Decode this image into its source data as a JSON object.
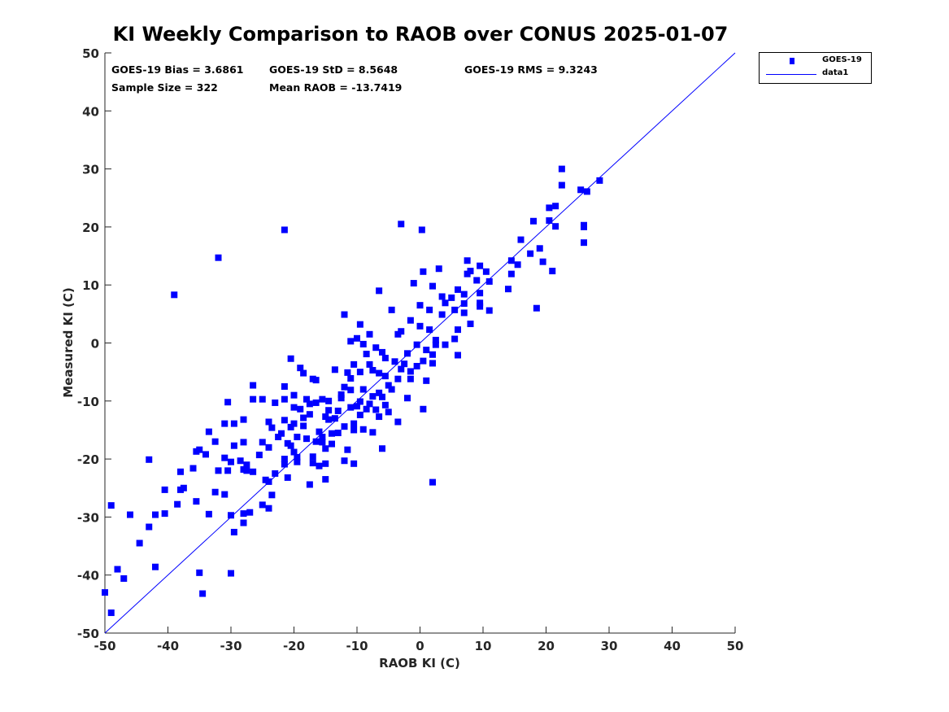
{
  "chart_data": {
    "type": "scatter",
    "title": "KI Weekly Comparison to RAOB over CONUS 2025-01-07",
    "xlabel": "RAOB KI (C)",
    "ylabel": "Measured KI (C)",
    "xlim": [
      -50,
      50
    ],
    "ylim": [
      -50,
      50
    ],
    "xticks": [
      -50,
      -40,
      -30,
      -20,
      -10,
      0,
      10,
      20,
      30,
      40,
      50
    ],
    "yticks": [
      -50,
      -40,
      -30,
      -20,
      -10,
      0,
      10,
      20,
      30,
      40,
      50
    ],
    "grid": false,
    "legend_position": "outside-top-right",
    "legend": [
      "GOES-19",
      "data1"
    ],
    "colors": {
      "points": "#0000ff",
      "line": "#0000ff",
      "axis": "#262626"
    },
    "annotations": {
      "bias": "GOES-19 Bias = 3.6861",
      "std": "GOES-19 StD = 8.5648",
      "rms": "GOES-19 RMS = 9.3243",
      "sample": "Sample Size = 322",
      "mean": "Mean RAOB = -13.7419"
    },
    "series": [
      {
        "name": "GOES-19",
        "kind": "scatter",
        "points": [
          [
            -21.5,
            19.5
          ],
          [
            -32,
            14.7
          ],
          [
            -39,
            8.3
          ],
          [
            -3,
            20.5
          ],
          [
            0.3,
            19.5
          ],
          [
            2,
            -24
          ],
          [
            -49,
            -46.5
          ],
          [
            -50,
            -43
          ],
          [
            -34.5,
            -43.2
          ],
          [
            -35,
            -39.6
          ],
          [
            -30,
            -39.7
          ],
          [
            -48,
            -39
          ],
          [
            -47,
            -40.6
          ],
          [
            -42,
            -38.6
          ],
          [
            -44.5,
            -34.5
          ],
          [
            -43,
            -31.7
          ],
          [
            -46,
            -29.6
          ],
          [
            -49,
            -28
          ],
          [
            -42,
            -29.6
          ],
          [
            -40.5,
            -29.4
          ],
          [
            -40.5,
            -25.3
          ],
          [
            -38,
            -25.3
          ],
          [
            -37.5,
            -25
          ],
          [
            -38.5,
            -27.8
          ],
          [
            -35.5,
            -27.3
          ],
          [
            -33.5,
            -29.5
          ],
          [
            -32.5,
            -25.7
          ],
          [
            -31,
            -26.1
          ],
          [
            -30,
            -29.7
          ],
          [
            -29.5,
            -32.6
          ],
          [
            -28,
            -31
          ],
          [
            -28,
            -29.4
          ],
          [
            -27,
            -29.2
          ],
          [
            -25,
            -27.9
          ],
          [
            -24,
            -28.5
          ],
          [
            -23.5,
            -26.2
          ],
          [
            -43,
            -20.1
          ],
          [
            -38,
            -22.2
          ],
          [
            -36,
            -21.6
          ],
          [
            -35.5,
            -18.7
          ],
          [
            -35,
            -18.4
          ],
          [
            -34,
            -19.2
          ],
          [
            -33.5,
            -15.3
          ],
          [
            -32.5,
            -17
          ],
          [
            -32,
            -22
          ],
          [
            -31,
            -19.8
          ],
          [
            -30.5,
            -22
          ],
          [
            -30,
            -20.5
          ],
          [
            -29.5,
            -17.7
          ],
          [
            -29.5,
            -13.9
          ],
          [
            -30.5,
            -10.2
          ],
          [
            -31,
            -13.9
          ],
          [
            -28.5,
            -20.3
          ],
          [
            -28,
            -21.8
          ],
          [
            -28,
            -17.1
          ],
          [
            -28,
            -13.2
          ],
          [
            -27.5,
            -22
          ],
          [
            -27.5,
            -21
          ],
          [
            -26.5,
            -22.2
          ],
          [
            -26.5,
            -9.7
          ],
          [
            -26.5,
            -7.3
          ],
          [
            -25.5,
            -19.3
          ],
          [
            -25,
            -17.1
          ],
          [
            -25,
            -9.7
          ],
          [
            -24.5,
            -23.6
          ],
          [
            -24,
            -23.9
          ],
          [
            -24,
            -18
          ],
          [
            -24,
            -13.6
          ],
          [
            -23.5,
            -14.6
          ],
          [
            -23,
            -22.5
          ],
          [
            -23,
            -10.3
          ],
          [
            -22.5,
            -16.2
          ],
          [
            -22,
            -15.6
          ],
          [
            -21.5,
            -13.3
          ],
          [
            -21.5,
            -9.7
          ],
          [
            -21.5,
            -7.5
          ],
          [
            -21.5,
            -20
          ],
          [
            -21.5,
            -20.9
          ],
          [
            -21,
            -17.3
          ],
          [
            -21,
            -23.2
          ],
          [
            -20.5,
            -17.7
          ],
          [
            -20.5,
            -14.5
          ],
          [
            -20.5,
            -2.7
          ],
          [
            -20,
            -13.9
          ],
          [
            -20,
            -11.1
          ],
          [
            -20,
            -9
          ],
          [
            -20,
            -18.8
          ],
          [
            -19.5,
            -19.7
          ],
          [
            -19.5,
            -20.5
          ],
          [
            -19.5,
            -16.2
          ],
          [
            -19,
            -11.4
          ],
          [
            -19,
            -4.3
          ],
          [
            -18.5,
            -14.3
          ],
          [
            -18.5,
            -12.9
          ],
          [
            -18.5,
            -5.2
          ],
          [
            -18,
            -16.5
          ],
          [
            -18,
            -9.7
          ],
          [
            -17.5,
            -24.4
          ],
          [
            -17.5,
            -10.5
          ],
          [
            -17.5,
            -12.3
          ],
          [
            -17,
            -6.2
          ],
          [
            -17,
            -19.6
          ],
          [
            -17,
            -20.7
          ],
          [
            -16.5,
            -6.4
          ],
          [
            -16.5,
            -10.3
          ],
          [
            -16.5,
            -17
          ],
          [
            -16,
            -15.3
          ],
          [
            -16,
            -21.2
          ],
          [
            -15.5,
            -9.7
          ],
          [
            -15.5,
            -16.2
          ],
          [
            -15.5,
            -17.1
          ],
          [
            -15,
            -12.7
          ],
          [
            -15,
            -18.2
          ],
          [
            -15,
            -23.5
          ],
          [
            -15,
            -20.8
          ],
          [
            -14.5,
            -10
          ],
          [
            -14.5,
            -13.2
          ],
          [
            -14.5,
            -11.6
          ],
          [
            -14,
            -15.6
          ],
          [
            -14,
            -17.4
          ],
          [
            -13.5,
            -13
          ],
          [
            -13.5,
            -4.6
          ],
          [
            -13,
            -15.5
          ],
          [
            -13,
            -11.7
          ],
          [
            -12.5,
            -8.9
          ],
          [
            -12.5,
            -9.5
          ],
          [
            -12,
            -20.3
          ],
          [
            -12,
            -14.4
          ],
          [
            -12,
            -7.6
          ],
          [
            -12,
            4.9
          ],
          [
            -11.5,
            -5.1
          ],
          [
            -11.5,
            -18.4
          ],
          [
            -11,
            -11.1
          ],
          [
            -11,
            -8.1
          ],
          [
            -11,
            -6.1
          ],
          [
            -11,
            0.3
          ],
          [
            -10.5,
            -20.8
          ],
          [
            -10.5,
            -15
          ],
          [
            -10.5,
            -13.9
          ],
          [
            -10.5,
            -3.7
          ],
          [
            -10,
            -10.9
          ],
          [
            -10,
            0.8
          ],
          [
            -9.5,
            -12.4
          ],
          [
            -9.5,
            -10.1
          ],
          [
            -9.5,
            -5
          ],
          [
            -9.5,
            3.2
          ],
          [
            -9,
            -14.9
          ],
          [
            -9,
            -8
          ],
          [
            -9,
            -0.2
          ],
          [
            -8.5,
            -11.4
          ],
          [
            -8.5,
            -1.9
          ],
          [
            -8,
            -10.5
          ],
          [
            -8,
            -3.7
          ],
          [
            -8,
            1.5
          ],
          [
            -7.5,
            -15.4
          ],
          [
            -7.5,
            -9.2
          ],
          [
            -7.5,
            -4.7
          ],
          [
            -7,
            -11.5
          ],
          [
            -7,
            -0.8
          ],
          [
            -6.5,
            -12.7
          ],
          [
            -6.5,
            -8.6
          ],
          [
            -6.5,
            -5.2
          ],
          [
            -6.5,
            9
          ],
          [
            -6,
            -18.2
          ],
          [
            -6,
            -9.3
          ],
          [
            -6,
            -1.6
          ],
          [
            -5.5,
            -10.7
          ],
          [
            -5.5,
            -5.7
          ],
          [
            -5.5,
            -2.6
          ],
          [
            -5,
            -11.9
          ],
          [
            -5,
            -7.3
          ],
          [
            -4.5,
            -8
          ],
          [
            -4.5,
            5.7
          ],
          [
            -4,
            -3.2
          ],
          [
            -3.5,
            -13.6
          ],
          [
            -3.5,
            -6.2
          ],
          [
            -3.5,
            1.5
          ],
          [
            -3,
            -4.5
          ],
          [
            -3,
            2
          ],
          [
            -2.5,
            -3.6
          ],
          [
            -2,
            -9.5
          ],
          [
            -2,
            -1.8
          ],
          [
            -1.5,
            -6.2
          ],
          [
            -1.5,
            -4.9
          ],
          [
            -1.5,
            3.9
          ],
          [
            -1,
            10.3
          ],
          [
            -0.5,
            -4
          ],
          [
            -0.5,
            -0.3
          ],
          [
            0,
            2.9
          ],
          [
            0,
            6.5
          ],
          [
            0.5,
            -11.4
          ],
          [
            0.5,
            -3.1
          ],
          [
            0.5,
            12.3
          ],
          [
            1,
            -6.5
          ],
          [
            1,
            -1.2
          ],
          [
            1.5,
            2.3
          ],
          [
            1.5,
            5.7
          ],
          [
            2,
            -2
          ],
          [
            2,
            -3.5
          ],
          [
            2,
            9.8
          ],
          [
            2.5,
            0.5
          ],
          [
            2.5,
            -0.3
          ],
          [
            3,
            12.8
          ],
          [
            3.5,
            4.9
          ],
          [
            3.5,
            8
          ],
          [
            4,
            -0.3
          ],
          [
            4,
            6.9
          ],
          [
            5,
            7.8
          ],
          [
            5.5,
            5.7
          ],
          [
            5.5,
            0.7
          ],
          [
            6,
            -2.1
          ],
          [
            6,
            2.3
          ],
          [
            6,
            9.2
          ],
          [
            7,
            5.2
          ],
          [
            7,
            8.4
          ],
          [
            7,
            6.8
          ],
          [
            7.5,
            14.2
          ],
          [
            7.5,
            11.9
          ],
          [
            8,
            12.4
          ],
          [
            8,
            3.3
          ],
          [
            9,
            10.8
          ],
          [
            9.5,
            13.3
          ],
          [
            9.5,
            8.6
          ],
          [
            9.5,
            6.9
          ],
          [
            9.5,
            6.3
          ],
          [
            10.5,
            12.3
          ],
          [
            11,
            10.6
          ],
          [
            11,
            5.6
          ],
          [
            14,
            9.3
          ],
          [
            14.5,
            14.2
          ],
          [
            14.5,
            11.9
          ],
          [
            15.5,
            13.5
          ],
          [
            16,
            17.8
          ],
          [
            17.5,
            15.4
          ],
          [
            18,
            21
          ],
          [
            18.5,
            6
          ],
          [
            19,
            16.3
          ],
          [
            19.5,
            14
          ],
          [
            20.5,
            23.3
          ],
          [
            20.5,
            21.1
          ],
          [
            21,
            12.4
          ],
          [
            21.5,
            23.6
          ],
          [
            21.5,
            20.1
          ],
          [
            22.5,
            30
          ],
          [
            22.5,
            27.2
          ],
          [
            25.5,
            26.4
          ],
          [
            26,
            17.3
          ],
          [
            26,
            20.3
          ],
          [
            26,
            20
          ],
          [
            26.5,
            26.1
          ],
          [
            28.5,
            28
          ]
        ]
      },
      {
        "name": "data1",
        "kind": "line",
        "points": [
          [
            -50,
            -50
          ],
          [
            50,
            50
          ]
        ]
      }
    ]
  }
}
